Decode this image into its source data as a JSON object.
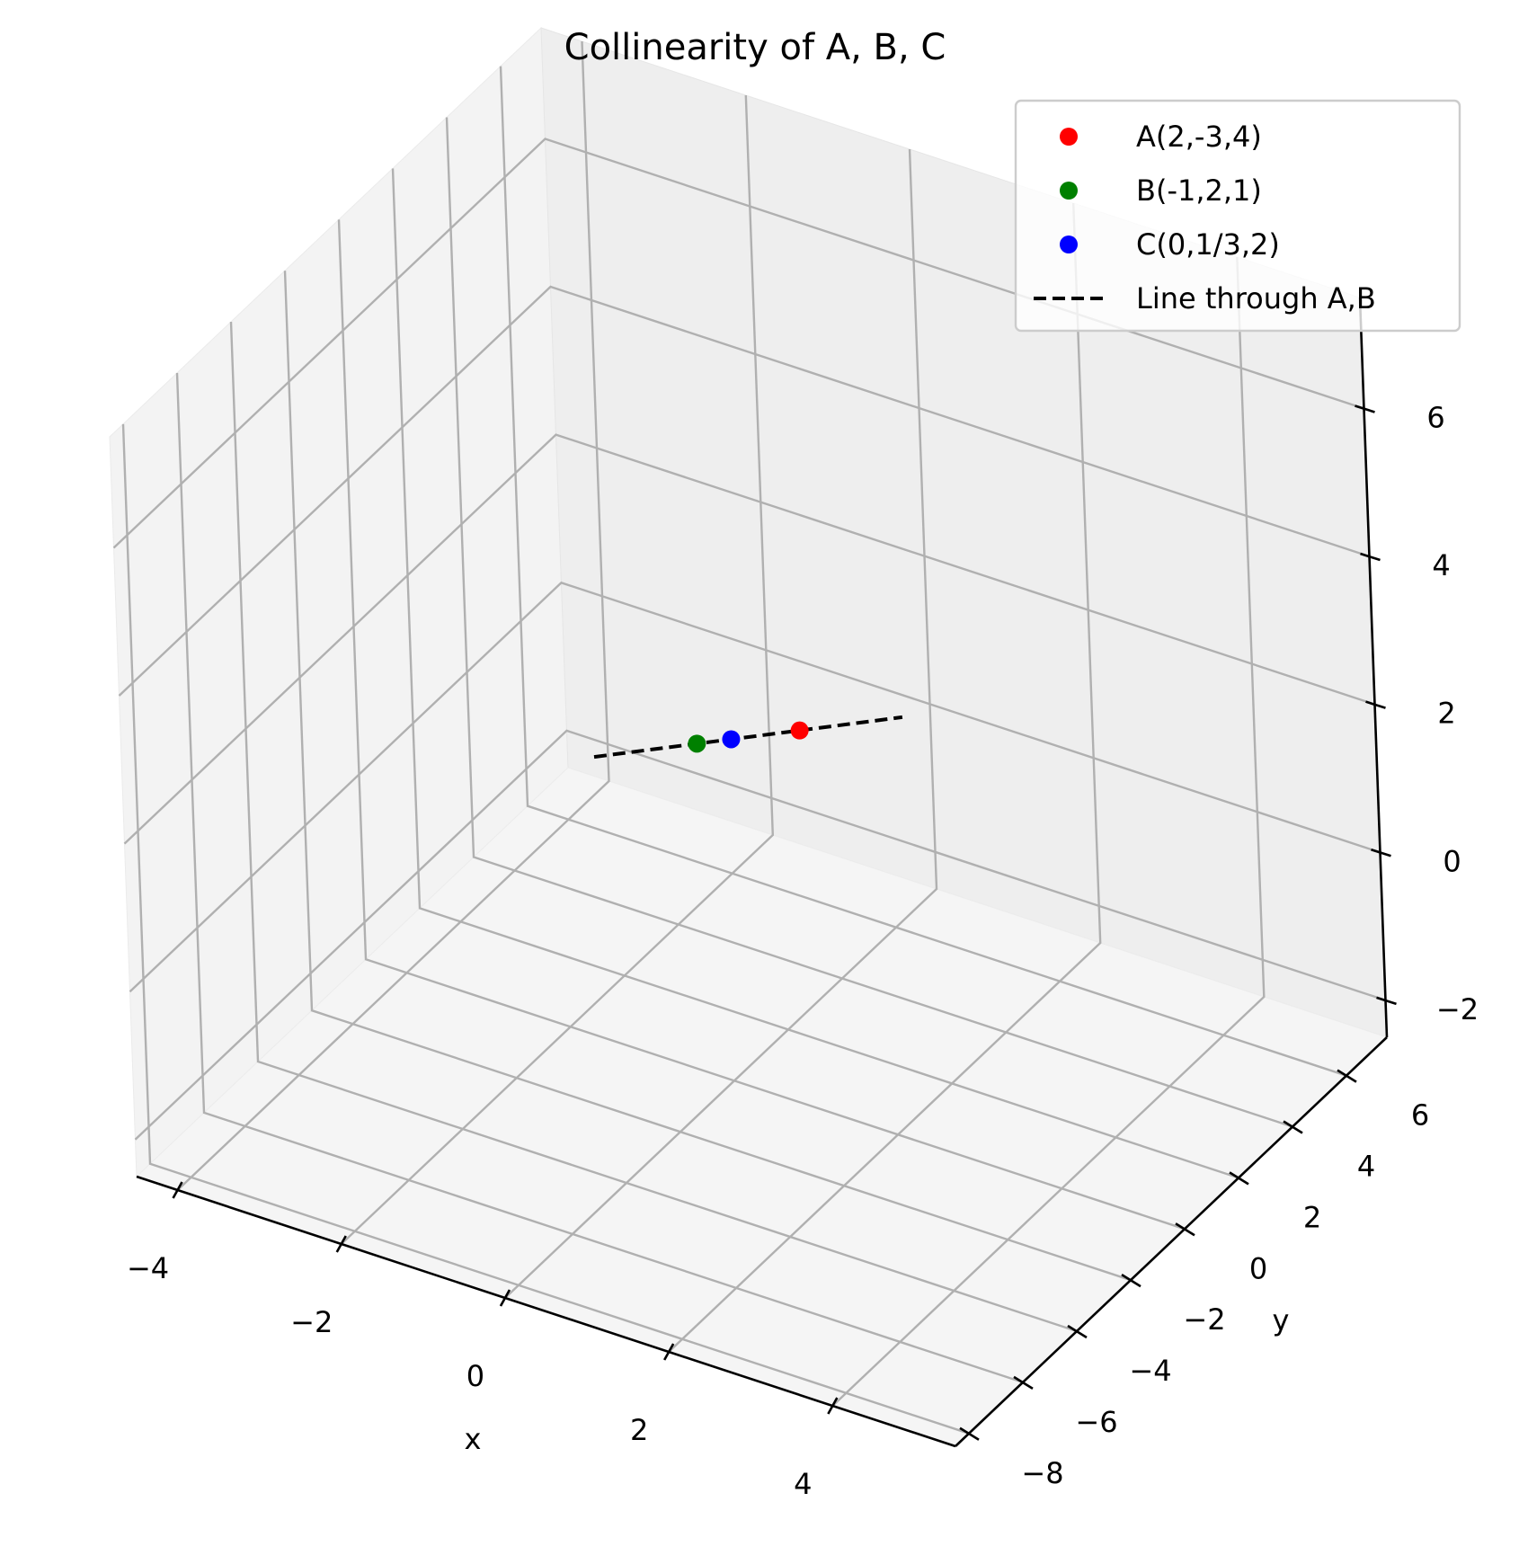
{
  "chart_data": {
    "type": "scatter",
    "title": "Collinearity of A, B, C",
    "xlabel": "x",
    "ylabel": "y",
    "zlabel": "",
    "projection": "3d",
    "xlim": [
      -4.5,
      5.5
    ],
    "ylim": [
      -8.5,
      7.5
    ],
    "zlim": [
      -2.5,
      7.5
    ],
    "xticks": [
      "−4",
      "−2",
      "0",
      "2",
      "4"
    ],
    "yticks": [
      "−8",
      "−6",
      "−4",
      "−2",
      "0",
      "2",
      "4",
      "6"
    ],
    "zticks": [
      "−2",
      "0",
      "2",
      "4",
      "6"
    ],
    "grid": true,
    "legend_position": "top-right",
    "series": [
      {
        "name": "A(2,-3,4)",
        "kind": "point",
        "color": "#ff0000",
        "points": [
          [
            2,
            -3,
            4
          ]
        ]
      },
      {
        "name": "B(-1,2,1)",
        "kind": "point",
        "color": "#008000",
        "points": [
          [
            -1,
            2,
            1
          ]
        ]
      },
      {
        "name": "C(0,1/3,2)",
        "kind": "point",
        "color": "#0000ff",
        "points": [
          [
            0,
            0.3333,
            2
          ]
        ]
      },
      {
        "name": "Line through A,B",
        "kind": "line",
        "color": "#000000",
        "style": "dashed",
        "points": [
          [
            -4,
            7,
            -2
          ],
          [
            5,
            -8,
            7
          ]
        ]
      }
    ]
  }
}
